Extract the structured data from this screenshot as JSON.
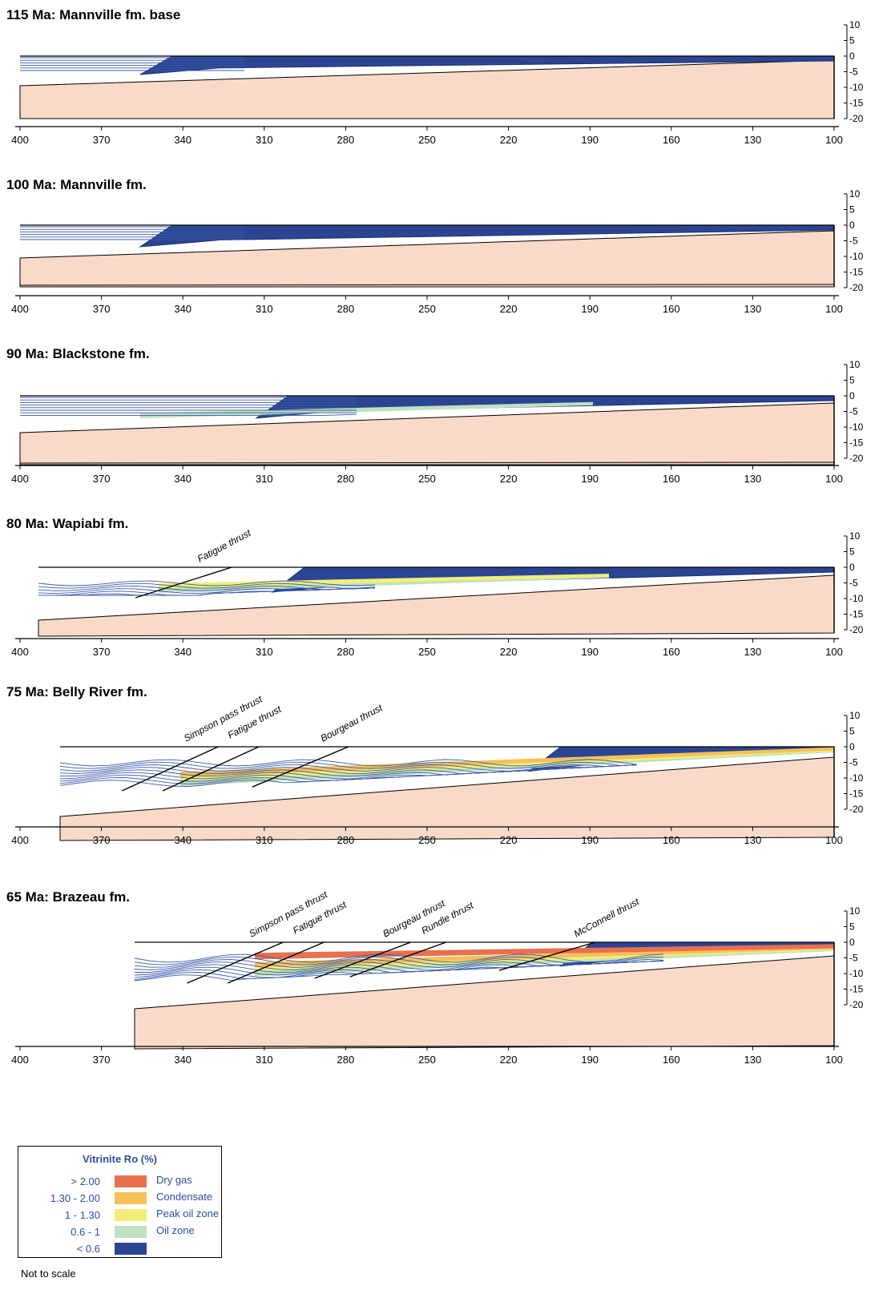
{
  "panels": [
    {
      "title": "115 Ma: Mannville fm. base",
      "thrusts": []
    },
    {
      "title": "100 Ma: Mannville fm.",
      "thrusts": []
    },
    {
      "title": "90 Ma: Blackstone fm.",
      "thrusts": []
    },
    {
      "title": "80 Ma: Wapiabi fm.",
      "thrusts": [
        {
          "label": "Fatigue thrust",
          "x": 322
        }
      ]
    },
    {
      "title": "75 Ma: Belly River fm.",
      "thrusts": [
        {
          "label": "Simpson pass thrust",
          "x": 327
        },
        {
          "label": "Fatigue thrust",
          "x": 312
        },
        {
          "label": "Bourgeau thrust",
          "x": 279
        }
      ]
    },
    {
      "title": "65 Ma: Brazeau fm.",
      "thrusts": [
        {
          "label": "Simpson pass thrust",
          "x": 303
        },
        {
          "label": "Fatigue thrust",
          "x": 288
        },
        {
          "label": "Bourgeau thrust",
          "x": 256
        },
        {
          "label": "Rundle thrust",
          "x": 243
        },
        {
          "label": "McConnell thrust",
          "x": 188
        }
      ]
    }
  ],
  "x_ticks": [
    "400",
    "370",
    "340",
    "310",
    "280",
    "250",
    "220",
    "190",
    "160",
    "130",
    "100"
  ],
  "depth_ticks": [
    "10",
    "5",
    "0",
    "-5",
    "-10",
    "-15",
    "-20"
  ],
  "legend": {
    "title": "Vitrinite Ro (%)",
    "items": [
      {
        "range": "> 2.00",
        "label": "Dry gas",
        "color": "#e8704e"
      },
      {
        "range": "1.30 - 2.00",
        "label": "Condensate",
        "color": "#f5c05a"
      },
      {
        "range": "1 - 1.30",
        "label": "Peak oil zone",
        "color": "#f2ee78"
      },
      {
        "range": "0.6 - 1",
        "label": "Oil zone",
        "color": "#bfe1bf"
      },
      {
        "range": "< 0.6",
        "label": "",
        "color": "#2b4592"
      }
    ]
  },
  "note": "Not to scale",
  "colors": {
    "basement": "#f9d9c8",
    "layer_line": "#3a5aa8",
    "immature": "#2b4592"
  }
}
